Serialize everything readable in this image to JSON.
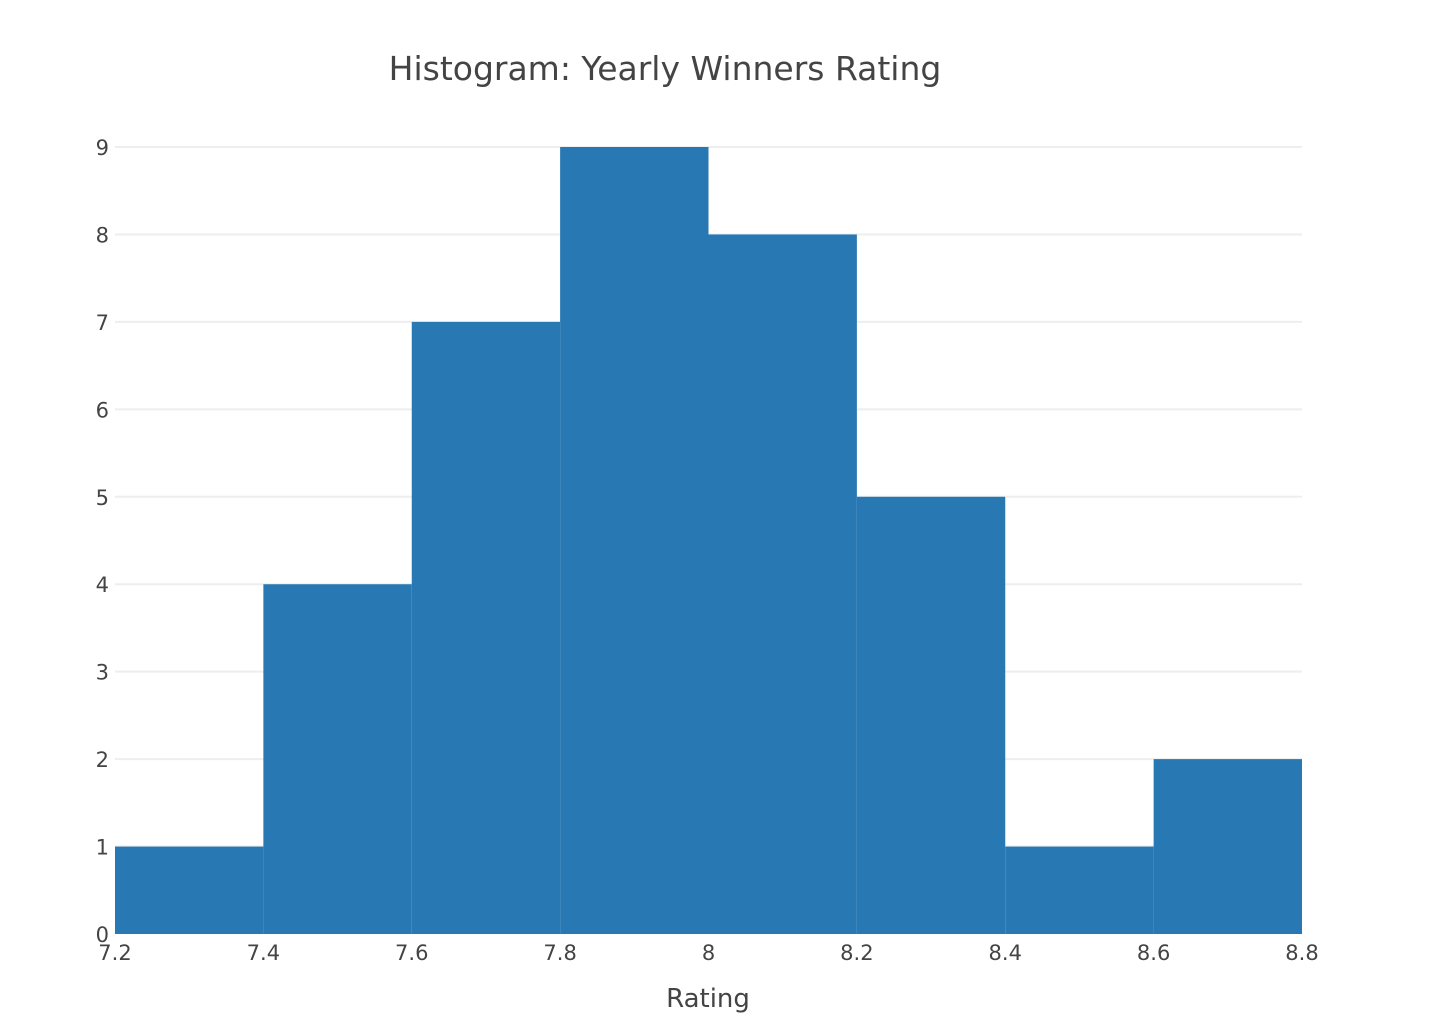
{
  "chart_data": {
    "type": "bar",
    "title": "Histogram: Yearly Winners Rating",
    "xlabel": "Rating",
    "ylabel": "",
    "bins": [
      {
        "start": 7.2,
        "end": 7.4,
        "count": 1
      },
      {
        "start": 7.4,
        "end": 7.6,
        "count": 4
      },
      {
        "start": 7.6,
        "end": 7.8,
        "count": 7
      },
      {
        "start": 7.8,
        "end": 8.0,
        "count": 9
      },
      {
        "start": 8.0,
        "end": 8.2,
        "count": 8
      },
      {
        "start": 8.2,
        "end": 8.4,
        "count": 5
      },
      {
        "start": 8.4,
        "end": 8.6,
        "count": 1
      },
      {
        "start": 8.6,
        "end": 8.8,
        "count": 2
      }
    ],
    "xlim": [
      7.2,
      8.8
    ],
    "ylim": [
      0,
      9
    ],
    "x_ticks": [
      "7.2",
      "7.4",
      "7.6",
      "7.8",
      "8",
      "8.2",
      "8.4",
      "8.6",
      "8.8"
    ],
    "y_ticks": [
      "0",
      "1",
      "2",
      "3",
      "4",
      "5",
      "6",
      "7",
      "8",
      "9"
    ],
    "grid": true,
    "bar_color": "#2878b3"
  }
}
